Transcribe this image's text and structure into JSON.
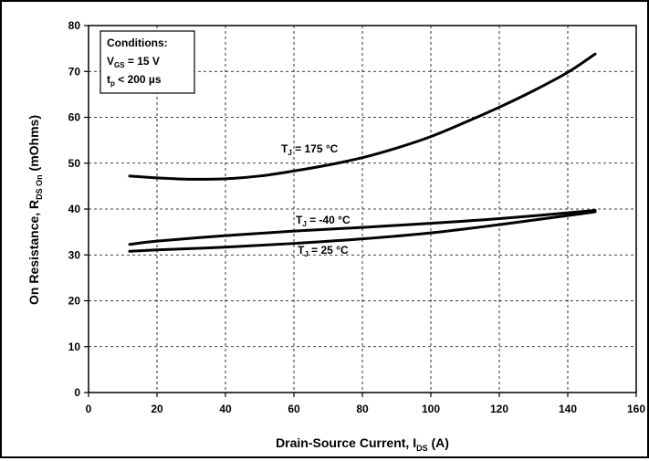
{
  "chart_data": {
    "type": "line",
    "xlabel": {
      "main": "Drain-Source Current, I",
      "sub": "DS",
      "unit": " (A)"
    },
    "ylabel": {
      "main": "On Resistance, R",
      "sub": "DS On",
      "unit": " (mOhms)"
    },
    "xlim": [
      0,
      160
    ],
    "ylim": [
      0,
      80
    ],
    "xticks": [
      0,
      20,
      40,
      60,
      80,
      100,
      120,
      140,
      160
    ],
    "yticks": [
      0,
      10,
      20,
      30,
      40,
      50,
      60,
      70,
      80
    ],
    "grid": true,
    "conditions": {
      "title": "Conditions:",
      "vgs": {
        "main": "V",
        "sub": "GS",
        "rest": " = 15 V"
      },
      "tp": {
        "main": "t",
        "sub": "p",
        "rest": " < 200 µs"
      }
    },
    "series": [
      {
        "name": {
          "main": "T",
          "sub": "J",
          "rest": " = 175 °C"
        },
        "x": [
          12,
          20,
          30,
          40,
          50,
          60,
          70,
          80,
          90,
          100,
          110,
          120,
          130,
          140,
          148
        ],
        "y": [
          47.2,
          46.8,
          46.5,
          46.6,
          47.2,
          48.3,
          49.6,
          51.2,
          53.3,
          55.8,
          58.9,
          62.2,
          65.8,
          69.8,
          73.8
        ]
      },
      {
        "name": {
          "main": "T",
          "sub": "J",
          "rest": " = -40 °C"
        },
        "x": [
          12,
          20,
          40,
          60,
          80,
          100,
          120,
          148
        ],
        "y": [
          32.3,
          33.0,
          34.2,
          35.2,
          36.0,
          36.9,
          37.9,
          39.7
        ]
      },
      {
        "name": {
          "main": "T",
          "sub": "J",
          "rest": " = 25 °C"
        },
        "x": [
          12,
          20,
          40,
          60,
          80,
          100,
          120,
          148
        ],
        "y": [
          30.8,
          31.1,
          31.7,
          32.5,
          33.5,
          34.8,
          36.6,
          39.4
        ]
      }
    ]
  }
}
